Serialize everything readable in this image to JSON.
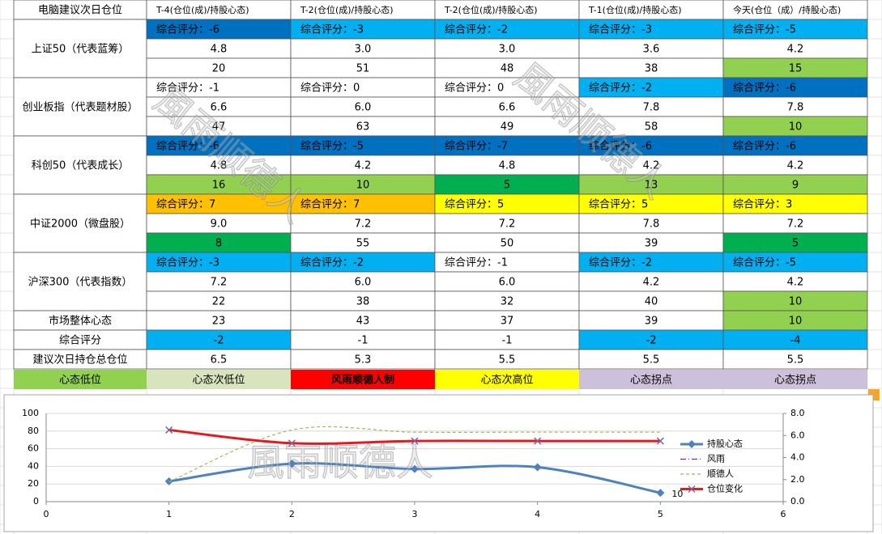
{
  "table": {
    "header": [
      "电脑建议次日仓位",
      "T-4(仓位(成)/持股心态)",
      "T-2(仓位(成)/持股心态)",
      "T-2(仓位(成)/持股心态)",
      "T-1(仓位(成)/持股心态)",
      "今天(仓位（成）/持股心态)"
    ],
    "groups": [
      {
        "label": "上证50（代表蓝筹）",
        "rows": [
          {
            "cells": [
              "综合评分：-6",
              "综合评分：-3",
              "综合评分：-2",
              "综合评分：-3",
              "综合评分：-5"
            ],
            "colors": [
              "#0070c0",
              "#00b0f0",
              "#00b0f0",
              "#00b0f0",
              "#00b0f0"
            ]
          },
          {
            "cells": [
              "4.8",
              "3.0",
              "3.0",
              "3.6",
              "4.2"
            ],
            "colors": [
              null,
              null,
              null,
              null,
              null
            ]
          },
          {
            "cells": [
              "20",
              "51",
              "48",
              "38",
              "15"
            ],
            "colors": [
              null,
              null,
              null,
              null,
              "#92d050"
            ]
          }
        ]
      },
      {
        "label": "创业板指（代表题材股）",
        "rows": [
          {
            "cells": [
              "综合评分：-1",
              "综合评分：0",
              "综合评分：0",
              "综合评分：-2",
              "综合评分：-6"
            ],
            "colors": [
              null,
              null,
              null,
              "#00b0f0",
              "#0070c0"
            ]
          },
          {
            "cells": [
              "6.6",
              "6.0",
              "6.6",
              "7.8",
              "7.8"
            ],
            "colors": [
              null,
              null,
              null,
              null,
              null
            ]
          },
          {
            "cells": [
              "47",
              "63",
              "49",
              "58",
              "10"
            ],
            "colors": [
              null,
              null,
              null,
              null,
              "#92d050"
            ]
          }
        ]
      },
      {
        "label": "科创50（代表成长）",
        "rows": [
          {
            "cells": [
              "综合评分：-6",
              "综合评分：-5",
              "综合评分：-7",
              "综合评分：-6",
              "综合评分：-6"
            ],
            "colors": [
              "#0070c0",
              "#0070c0",
              "#0070c0",
              "#0070c0",
              "#0070c0"
            ]
          },
          {
            "cells": [
              "4.8",
              "4.2",
              "4.8",
              "4.2",
              "4.2"
            ],
            "colors": [
              null,
              null,
              null,
              null,
              null
            ]
          },
          {
            "cells": [
              "16",
              "10",
              "5",
              "13",
              "9"
            ],
            "colors": [
              "#92d050",
              "#92d050",
              "#00b050",
              "#92d050",
              "#92d050"
            ]
          }
        ]
      },
      {
        "label": "中证2000（微盘股）",
        "rows": [
          {
            "cells": [
              "综合评分：7",
              "综合评分：7",
              "综合评分：5",
              "综合评分：5",
              "综合评分：3"
            ],
            "colors": [
              "#ffc000",
              "#ffc000",
              "#ffff00",
              "#ffff00",
              "#ffff00"
            ]
          },
          {
            "cells": [
              "9.0",
              "7.2",
              "7.2",
              "7.8",
              "7.2"
            ],
            "colors": [
              null,
              null,
              null,
              null,
              null
            ]
          },
          {
            "cells": [
              "8",
              "55",
              "50",
              "39",
              "5"
            ],
            "colors": [
              "#00b050",
              null,
              null,
              null,
              "#00b050"
            ]
          }
        ]
      },
      {
        "label": "沪深300（代表指数）",
        "rows": [
          {
            "cells": [
              "综合评分：-3",
              "综合评分：-2",
              "综合评分：-1",
              "综合评分：-2",
              "综合评分：-5"
            ],
            "colors": [
              "#00b0f0",
              "#00b0f0",
              null,
              "#00b0f0",
              "#00b0f0"
            ]
          },
          {
            "cells": [
              "7.2",
              "6.0",
              "6.0",
              "4.2",
              "4.2"
            ],
            "colors": [
              null,
              null,
              null,
              null,
              null
            ]
          },
          {
            "cells": [
              "22",
              "38",
              "32",
              "40",
              "10"
            ],
            "colors": [
              null,
              null,
              null,
              null,
              "#92d050"
            ]
          }
        ]
      },
      {
        "label": "市场整体心态",
        "rows": [
          {
            "cells": [
              "23",
              "43",
              "37",
              "39",
              "10"
            ],
            "colors": [
              null,
              null,
              null,
              null,
              "#92d050"
            ]
          }
        ]
      },
      {
        "label": "综合评分",
        "rows": [
          {
            "cells": [
              "-2",
              "-1",
              "-1",
              "-2",
              "-4"
            ],
            "colors": [
              "#00b0f0",
              null,
              null,
              "#00b0f0",
              "#00b0f0"
            ]
          }
        ]
      },
      {
        "label": "建议次日持仓总仓位",
        "rows": [
          {
            "cells": [
              "6.5",
              "5.3",
              "5.5",
              "5.5",
              "5.5"
            ],
            "colors": [
              null,
              null,
              null,
              null,
              null
            ]
          }
        ]
      }
    ],
    "legend": [
      {
        "text": "心态低位",
        "color": "#92d050"
      },
      {
        "text": "心态次低位",
        "color": "#d8e4bc"
      },
      {
        "text": "风雨顺德人制",
        "color": "#ff0000"
      },
      {
        "text": "心态次高位",
        "color": "#ffff00"
      },
      {
        "text": "心态拐点",
        "color": "#ccc0da"
      },
      {
        "text": "心态拐点",
        "color": "#ccc0da"
      }
    ]
  },
  "watermarks": [
    "風雨顺德人",
    "風雨顺德人",
    "風雨顺德人"
  ],
  "chart_data": {
    "type": "line",
    "x": [
      1,
      2,
      3,
      4,
      5
    ],
    "xlim": [
      0,
      6
    ],
    "xticks": [
      0,
      1,
      2,
      3,
      4,
      5,
      6
    ],
    "ylim": [
      0,
      100
    ],
    "yticks": [
      0,
      20,
      40,
      60,
      80,
      100
    ],
    "y2lim": [
      0,
      8
    ],
    "y2ticks": [
      {
        "value": 0,
        "label": "0.0"
      },
      {
        "value": 2,
        "label": "2.0"
      },
      {
        "value": 4,
        "label": "4.0"
      },
      {
        "value": 6,
        "label": "6.0"
      },
      {
        "value": 8,
        "label": "8.0"
      }
    ],
    "grid": true,
    "legend": "right",
    "series": [
      {
        "name": "持股心态",
        "color": "#4f81bd",
        "values": [
          23,
          43,
          37,
          39,
          10
        ],
        "value_labels": [
          null,
          null,
          null,
          null,
          "10"
        ]
      },
      {
        "name": "风雨",
        "color": "#7030a0",
        "values": [
          null,
          null,
          null,
          null,
          null
        ]
      },
      {
        "name": "顺德人",
        "color": "#9bbb59",
        "values": [
          1.8,
          6.5,
          6.3,
          6.3,
          6.3
        ],
        "axis": "y2"
      },
      {
        "name": "仓位变化",
        "color": "#e41a1c",
        "values": [
          6.5,
          5.3,
          5.5,
          5.5,
          5.5
        ],
        "axis": "y2"
      }
    ]
  }
}
